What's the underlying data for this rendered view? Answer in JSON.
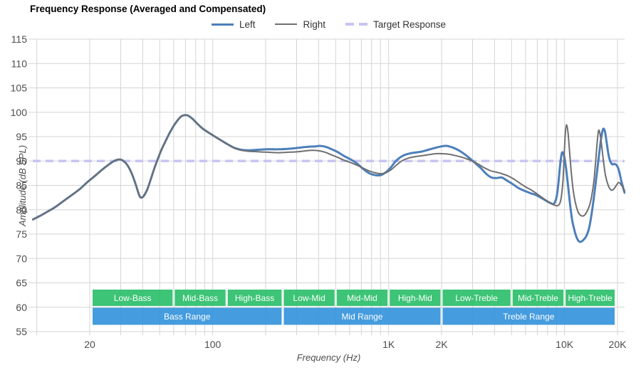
{
  "title": "Frequency Response (Averaged and Compensated)",
  "legend": [
    {
      "label": "Left",
      "color": "#4d7fba",
      "style": "solid"
    },
    {
      "label": "Right",
      "color": "#6f6f6f",
      "style": "solid"
    },
    {
      "label": "Target Response",
      "color": "#c7c5f1",
      "style": "dashed"
    }
  ],
  "colors": {
    "left": "#4d7fba",
    "right": "#6f6f6f",
    "target": "#c7c5f1",
    "grid": "#d5d5d5",
    "tick_text": "#4d4d4d",
    "sub_band": "#2ebf6c",
    "main_band": "#3795dc",
    "band_text": "#ffffff"
  },
  "chart_data": {
    "type": "line",
    "title": "Frequency Response (Averaged and Compensated)",
    "x_axis": {
      "label": "Frequency (Hz)",
      "scale": "log",
      "min": 9.5,
      "max": 21950,
      "ticks": [
        {
          "label": "20",
          "value": 20
        },
        {
          "label": "100",
          "value": 100
        },
        {
          "label": "1K",
          "value": 1000
        },
        {
          "label": "2K",
          "value": 2000
        },
        {
          "label": "10K",
          "value": 10000
        },
        {
          "label": "20K",
          "value": 20000
        }
      ],
      "gridlines": [
        10,
        20,
        30,
        40,
        50,
        60,
        70,
        80,
        90,
        100,
        200,
        300,
        400,
        500,
        600,
        700,
        800,
        900,
        1000,
        2000,
        3000,
        4000,
        5000,
        6000,
        7000,
        8000,
        9000,
        10000,
        20000
      ]
    },
    "y_axis": {
      "label": "Amplitude (dB SPL)",
      "min": 55,
      "max": 115,
      "ticks": [
        115,
        110,
        105,
        100,
        95,
        90,
        85,
        80,
        75,
        70,
        65,
        60,
        55
      ]
    },
    "target": {
      "name": "Target Response",
      "value": 90
    },
    "series": [
      {
        "name": "Left",
        "color": "#4d7fba",
        "width": 3,
        "points": [
          [
            9.5,
            78.0
          ],
          [
            10.5,
            78.8
          ],
          [
            11.5,
            79.6
          ],
          [
            12.8,
            80.6
          ],
          [
            14.2,
            81.8
          ],
          [
            15.8,
            83.0
          ],
          [
            17.5,
            84.2
          ],
          [
            19.3,
            85.6
          ],
          [
            21.5,
            87.0
          ],
          [
            23.5,
            88.2
          ],
          [
            25.5,
            89.2
          ],
          [
            27.5,
            90.0
          ],
          [
            29.0,
            90.3
          ],
          [
            30.5,
            90.2
          ],
          [
            32.5,
            89.3
          ],
          [
            34.5,
            87.6
          ],
          [
            36.5,
            85.2
          ],
          [
            38.0,
            83.2
          ],
          [
            39.0,
            82.5
          ],
          [
            40.5,
            82.8
          ],
          [
            42.5,
            84.2
          ],
          [
            44.5,
            86.3
          ],
          [
            46.5,
            88.4
          ],
          [
            48.5,
            90.2
          ],
          [
            51.0,
            92.2
          ],
          [
            54.0,
            94.1
          ],
          [
            57.0,
            95.8
          ],
          [
            60.0,
            97.2
          ],
          [
            63.0,
            98.3
          ],
          [
            66.0,
            99.1
          ],
          [
            69.0,
            99.4
          ],
          [
            72.5,
            99.3
          ],
          [
            77.0,
            98.6
          ],
          [
            82.0,
            97.6
          ],
          [
            88.0,
            96.6
          ],
          [
            95.0,
            95.8
          ],
          [
            103.0,
            95.0
          ],
          [
            112.0,
            94.2
          ],
          [
            122.0,
            93.4
          ],
          [
            133.0,
            92.7
          ],
          [
            145.0,
            92.3
          ],
          [
            160.0,
            92.2
          ],
          [
            180.0,
            92.3
          ],
          [
            205.0,
            92.4
          ],
          [
            235.0,
            92.4
          ],
          [
            270.0,
            92.5
          ],
          [
            305.0,
            92.7
          ],
          [
            345.0,
            92.9
          ],
          [
            385.0,
            93.0
          ],
          [
            405.0,
            93.1
          ],
          [
            440.0,
            92.9
          ],
          [
            475.0,
            92.4
          ],
          [
            515.0,
            91.8
          ],
          [
            560.0,
            91.0
          ],
          [
            610.0,
            90.3
          ],
          [
            660.0,
            89.5
          ],
          [
            715.0,
            88.4
          ],
          [
            775.0,
            87.5
          ],
          [
            840.0,
            87.1
          ],
          [
            905.0,
            87.1
          ],
          [
            965.0,
            87.7
          ],
          [
            1030.0,
            88.7
          ],
          [
            1100.0,
            90.0
          ],
          [
            1180.0,
            90.9
          ],
          [
            1270.0,
            91.4
          ],
          [
            1390.0,
            91.7
          ],
          [
            1530.0,
            91.9
          ],
          [
            1680.0,
            92.3
          ],
          [
            1840.0,
            92.7
          ],
          [
            2000.0,
            93.0
          ],
          [
            2130.0,
            93.1
          ],
          [
            2300.0,
            92.8
          ],
          [
            2500.0,
            92.2
          ],
          [
            2700.0,
            91.4
          ],
          [
            2900.0,
            90.5
          ],
          [
            3100.0,
            89.6
          ],
          [
            3350.0,
            88.5
          ],
          [
            3600.0,
            87.3
          ],
          [
            3850.0,
            86.6
          ],
          [
            4100.0,
            86.5
          ],
          [
            4400.0,
            86.6
          ],
          [
            4700.0,
            86.0
          ],
          [
            5100.0,
            85.2
          ],
          [
            5500.0,
            84.4
          ],
          [
            5900.0,
            83.9
          ],
          [
            6400.0,
            83.4
          ],
          [
            6900.0,
            83.0
          ],
          [
            7400.0,
            82.4
          ],
          [
            7900.0,
            81.8
          ],
          [
            8400.0,
            81.3
          ],
          [
            8700.0,
            81.2
          ],
          [
            9000.0,
            82.5
          ],
          [
            9200.0,
            85.0
          ],
          [
            9400.0,
            88.5
          ],
          [
            9600.0,
            91.2
          ],
          [
            9750.0,
            91.8
          ],
          [
            9950.0,
            91.0
          ],
          [
            10200.0,
            88.5
          ],
          [
            10500.0,
            84.5
          ],
          [
            10800.0,
            80.5
          ],
          [
            11100.0,
            77.5
          ],
          [
            11500.0,
            75.2
          ],
          [
            11900.0,
            73.8
          ],
          [
            12300.0,
            73.4
          ],
          [
            12800.0,
            73.8
          ],
          [
            13300.0,
            74.6
          ],
          [
            13800.0,
            76.3
          ],
          [
            14300.0,
            79.5
          ],
          [
            14800.0,
            83.5
          ],
          [
            15300.0,
            87.8
          ],
          [
            15800.0,
            92.0
          ],
          [
            16200.0,
            95.0
          ],
          [
            16600.0,
            96.6
          ],
          [
            17000.0,
            95.9
          ],
          [
            17400.0,
            93.5
          ],
          [
            17800.0,
            91.2
          ],
          [
            18200.0,
            89.9
          ],
          [
            18700.0,
            89.3
          ],
          [
            19200.0,
            89.4
          ],
          [
            19800.0,
            89.1
          ],
          [
            20400.0,
            88.0
          ],
          [
            21000.0,
            86.0
          ],
          [
            21500.0,
            84.6
          ],
          [
            21950.0,
            83.5
          ]
        ]
      },
      {
        "name": "Right",
        "color": "#6f6f6f",
        "width": 2,
        "points": [
          [
            9.5,
            78.0
          ],
          [
            10.5,
            78.8
          ],
          [
            11.5,
            79.6
          ],
          [
            12.8,
            80.6
          ],
          [
            14.2,
            81.8
          ],
          [
            15.8,
            83.0
          ],
          [
            17.5,
            84.2
          ],
          [
            19.3,
            85.6
          ],
          [
            21.5,
            87.0
          ],
          [
            23.5,
            88.2
          ],
          [
            25.5,
            89.2
          ],
          [
            27.5,
            90.0
          ],
          [
            29.0,
            90.3
          ],
          [
            30.5,
            90.2
          ],
          [
            32.5,
            89.3
          ],
          [
            34.5,
            87.6
          ],
          [
            36.5,
            85.2
          ],
          [
            38.0,
            83.2
          ],
          [
            39.0,
            82.5
          ],
          [
            40.5,
            82.8
          ],
          [
            42.5,
            84.2
          ],
          [
            44.5,
            86.3
          ],
          [
            46.5,
            88.4
          ],
          [
            48.5,
            90.2
          ],
          [
            51.0,
            92.2
          ],
          [
            54.0,
            94.1
          ],
          [
            57.0,
            95.8
          ],
          [
            60.0,
            97.2
          ],
          [
            63.0,
            98.3
          ],
          [
            66.0,
            99.1
          ],
          [
            69.0,
            99.4
          ],
          [
            72.5,
            99.3
          ],
          [
            77.0,
            98.6
          ],
          [
            82.0,
            97.6
          ],
          [
            88.0,
            96.6
          ],
          [
            95.0,
            95.8
          ],
          [
            103.0,
            95.0
          ],
          [
            112.0,
            94.2
          ],
          [
            122.0,
            93.4
          ],
          [
            133.0,
            92.6
          ],
          [
            145.0,
            92.2
          ],
          [
            160.0,
            92.0
          ],
          [
            180.0,
            91.9
          ],
          [
            205.0,
            91.8
          ],
          [
            235.0,
            91.7
          ],
          [
            270.0,
            91.8
          ],
          [
            305.0,
            91.9
          ],
          [
            340.0,
            92.1
          ],
          [
            370.0,
            92.2
          ],
          [
            400.0,
            92.1
          ],
          [
            435.0,
            91.8
          ],
          [
            470.0,
            91.3
          ],
          [
            510.0,
            90.8
          ],
          [
            555.0,
            90.2
          ],
          [
            605.0,
            89.7
          ],
          [
            655.0,
            89.2
          ],
          [
            710.0,
            88.6
          ],
          [
            770.0,
            88.0
          ],
          [
            835.0,
            87.6
          ],
          [
            900.0,
            87.4
          ],
          [
            965.0,
            87.6
          ],
          [
            1040.0,
            88.3
          ],
          [
            1120.0,
            89.3
          ],
          [
            1200.0,
            90.1
          ],
          [
            1300.0,
            90.6
          ],
          [
            1420.0,
            90.9
          ],
          [
            1560.0,
            91.1
          ],
          [
            1700.0,
            91.3
          ],
          [
            1850.0,
            91.5
          ],
          [
            2000.0,
            91.5
          ],
          [
            2200.0,
            91.4
          ],
          [
            2400.0,
            91.1
          ],
          [
            2600.0,
            90.8
          ],
          [
            2800.0,
            90.4
          ],
          [
            3000.0,
            90.0
          ],
          [
            3250.0,
            89.3
          ],
          [
            3500.0,
            88.6
          ],
          [
            3800.0,
            88.0
          ],
          [
            4100.0,
            87.7
          ],
          [
            4400.0,
            87.4
          ],
          [
            4800.0,
            86.9
          ],
          [
            5200.0,
            86.2
          ],
          [
            5600.0,
            85.4
          ],
          [
            6000.0,
            84.7
          ],
          [
            6500.0,
            84.0
          ],
          [
            7000.0,
            83.2
          ],
          [
            7600.0,
            82.3
          ],
          [
            8200.0,
            81.5
          ],
          [
            8700.0,
            81.0
          ],
          [
            9100.0,
            80.8
          ],
          [
            9400.0,
            81.3
          ],
          [
            9600.0,
            82.8
          ],
          [
            9800.0,
            86.0
          ],
          [
            9950.0,
            91.0
          ],
          [
            10100.0,
            95.5
          ],
          [
            10250.0,
            97.4
          ],
          [
            10450.0,
            96.0
          ],
          [
            10650.0,
            92.5
          ],
          [
            10900.0,
            88.0
          ],
          [
            11200.0,
            84.0
          ],
          [
            11600.0,
            81.0
          ],
          [
            12000.0,
            79.4
          ],
          [
            12400.0,
            78.8
          ],
          [
            12900.0,
            78.8
          ],
          [
            13400.0,
            79.6
          ],
          [
            13900.0,
            81.0
          ],
          [
            14300.0,
            83.0
          ],
          [
            14700.0,
            86.0
          ],
          [
            15000.0,
            89.5
          ],
          [
            15300.0,
            93.5
          ],
          [
            15600.0,
            96.2
          ],
          [
            15900.0,
            95.6
          ],
          [
            16300.0,
            92.8
          ],
          [
            16700.0,
            89.5
          ],
          [
            17100.0,
            87.0
          ],
          [
            17600.0,
            85.3
          ],
          [
            18100.0,
            84.3
          ],
          [
            18600.0,
            84.0
          ],
          [
            19100.0,
            84.3
          ],
          [
            19700.0,
            85.0
          ],
          [
            20300.0,
            85.6
          ],
          [
            20900.0,
            85.2
          ],
          [
            21500.0,
            84.5
          ],
          [
            21950.0,
            83.9
          ]
        ]
      }
    ],
    "bands": {
      "sub": [
        {
          "label": "Low-Bass",
          "from": 20,
          "to": 60
        },
        {
          "label": "Mid-Bass",
          "from": 60,
          "to": 120
        },
        {
          "label": "High-Bass",
          "from": 120,
          "to": 250
        },
        {
          "label": "Low-Mid",
          "from": 250,
          "to": 500
        },
        {
          "label": "Mid-Mid",
          "from": 500,
          "to": 1000
        },
        {
          "label": "High-Mid",
          "from": 1000,
          "to": 2000
        },
        {
          "label": "Low-Treble",
          "from": 2000,
          "to": 5000
        },
        {
          "label": "Mid-Treble",
          "from": 5000,
          "to": 10000
        },
        {
          "label": "High-Treble",
          "from": 10000,
          "to": 20000
        }
      ],
      "main": [
        {
          "label": "Bass Range",
          "from": 20,
          "to": 250
        },
        {
          "label": "Mid Range",
          "from": 250,
          "to": 2000
        },
        {
          "label": "Treble Range",
          "from": 2000,
          "to": 20000
        }
      ]
    }
  }
}
